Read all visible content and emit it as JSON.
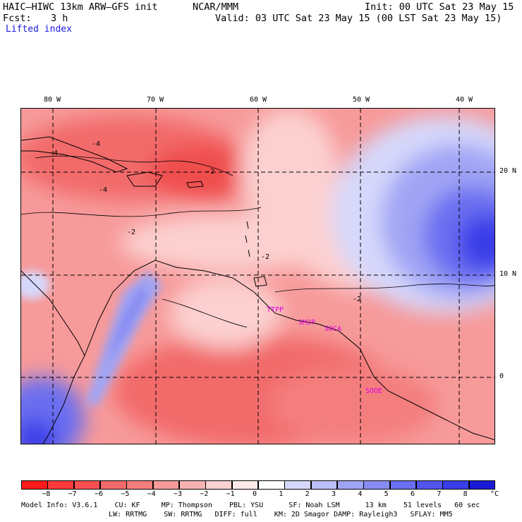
{
  "header": {
    "model": "HAIC–HIWC 13km ARW–GFS init",
    "org": "NCAR/MMM",
    "init": "Init: 00 UTC Sat 23 May 15",
    "fcst_label": "Fcst:",
    "fcst_value": "3 h",
    "valid": "Valid: 03 UTC Sat 23 May 15 (00 LST Sat 23 May 15)",
    "field": "Lifted index"
  },
  "map": {
    "lon_labels": [
      {
        "lon": -80,
        "label": "80 W"
      },
      {
        "lon": -70,
        "label": "70 W"
      },
      {
        "lon": -60,
        "label": "60 W"
      },
      {
        "lon": -50,
        "label": "50 W"
      },
      {
        "lon": -40,
        "label": "40 W"
      }
    ],
    "lat_labels": [
      {
        "lat": 20,
        "label": "20 N"
      },
      {
        "lat": 10,
        "label": "10 N"
      },
      {
        "lat": 0,
        "label": "0"
      }
    ],
    "contour_labels": [
      "-4",
      "-4",
      "-4",
      "-2",
      "-2",
      "-2",
      "-2"
    ],
    "stations": [
      "TTPP",
      "SMJP",
      "SOCA",
      "SOOE"
    ],
    "colors": {
      "neg8": "#ff1a1a",
      "neg5": "#f26a6a",
      "neg3": "#f79a9a",
      "neg1": "#fcd0d0",
      "zero": "#ffffff",
      "pos1": "#d6d8fb",
      "pos3": "#a0a4f4",
      "pos5": "#6a6ef0",
      "pos7": "#3a3ee8",
      "pos8": "#1a1ad6"
    }
  },
  "colorbar": {
    "ticks": [
      "−8",
      "−7",
      "−6",
      "−5",
      "−4",
      "−3",
      "−2",
      "−1",
      "0",
      "1",
      "2",
      "3",
      "4",
      "5",
      "6",
      "7",
      "8"
    ],
    "unit": "°C",
    "colors": [
      "#ff1a1a",
      "#ff3a3a",
      "#f85050",
      "#f26a6a",
      "#f47e7e",
      "#f79a9a",
      "#f9b2b2",
      "#fcd0d0",
      "#ffeaea",
      "#ffffff",
      "#d6d8fb",
      "#bcbff8",
      "#a0a4f4",
      "#888cf2",
      "#6a6ef0",
      "#5256ec",
      "#3a3ee8",
      "#1a1ad6"
    ]
  },
  "footer": {
    "line1": "Model Info: V3.6.1    CU: KF     MP: Thompson    PBL: YSU      SF: Noah LSM      13 km    51 levels   60 sec",
    "line2": "LW: RRTMG    SW: RRTMG   DIFF: full    KM: 2D Smagor DAMP: Rayleigh3   SFLAY: MM5"
  }
}
